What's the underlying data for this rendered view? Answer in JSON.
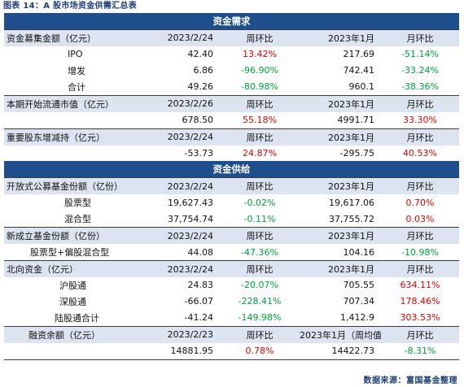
{
  "caption": "图表 14：A 股市场资金供需汇总表",
  "source": "数据来源：富国基金整理",
  "demand": {
    "title": "资金需求",
    "fundraise": {
      "header": [
        "资金募集金额（亿元）",
        "2023/2/24",
        "周环比",
        "2023年1月",
        "月环比"
      ],
      "rows": [
        [
          "IPO",
          "42.40",
          "13.42%",
          "217.69",
          "-51.14%"
        ],
        [
          "增发",
          "6.86",
          "-96.90%",
          "742.41",
          "-33.24%"
        ],
        [
          "合计",
          "49.26",
          "-80.98%",
          "960.1",
          "-38.36%"
        ]
      ]
    },
    "unlock": {
      "header": [
        "本期开始流通市值（亿元）",
        "2023/2/26",
        "周环比",
        "2023年1月",
        "月环比"
      ],
      "row": [
        "",
        "678.50",
        "55.18%",
        "4991.71",
        "33.30%"
      ]
    },
    "holder": {
      "header": [
        "重要股东增减持（亿元）",
        "2023/2/24",
        "周环比",
        "2023年1月",
        "月环比"
      ],
      "row": [
        "",
        "-53.73",
        "24.87%",
        "-295.75",
        "40.53%"
      ]
    }
  },
  "supply": {
    "title": "资金供给",
    "openfund": {
      "header": [
        "开放式公募基金份额（亿份）",
        "2023/2/24",
        "周环比",
        "2023年1月",
        "月环比"
      ],
      "rows": [
        [
          "股票型",
          "19,627.43",
          "-0.02%",
          "19,617.06",
          "0.70%"
        ],
        [
          "混合型",
          "37,754.74",
          "-0.11%",
          "37,755.72",
          "0.03%"
        ]
      ]
    },
    "newfund": {
      "header": [
        "新成立基金份额（亿份）",
        "2023/2/24",
        "周环比",
        "2023年1月",
        "月环比"
      ],
      "row": [
        "股票型+偏股混合型",
        "44.08",
        "-47.36%",
        "104.16",
        "-10.98%"
      ]
    },
    "northbound": {
      "header": [
        "北向资金（亿元）",
        "2023/2/24",
        "周环比",
        "2023年1月",
        "月环比"
      ],
      "rows": [
        [
          "沪股通",
          "24.83",
          "-20.07%",
          "705.55",
          "634.11%"
        ],
        [
          "深股通",
          "-66.07",
          "-228.41%",
          "707.34",
          "178.46%"
        ],
        [
          "陆股通合计",
          "-41.24",
          "-149.98%",
          "1,412.9",
          "303.53%"
        ]
      ]
    },
    "margin": {
      "header": [
        "融资余额（亿元）",
        "2023/2/23",
        "周环比",
        "2023年1月（周均值）",
        "月环比"
      ],
      "row": [
        "",
        "14881.95",
        "0.78%",
        "14422.73",
        "-8.31%"
      ]
    }
  },
  "colors": {
    "section_bg": "#1f4e8c",
    "header_bg": "#dbe4f0",
    "positive": "#e00000",
    "negative": "#00a03c"
  }
}
